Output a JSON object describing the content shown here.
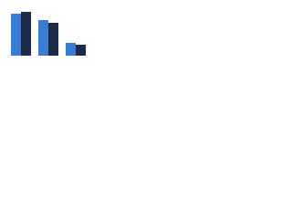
{
  "chart_data": {
    "type": "bar",
    "categories": [
      null,
      null,
      null
    ],
    "series": [
      {
        "color": "#3a7bd5",
        "values": [
          46,
          39,
          14
        ]
      },
      {
        "color": "#1c2b48",
        "values": [
          48,
          36,
          12
        ]
      }
    ],
    "ylim": [
      0,
      50
    ]
  }
}
